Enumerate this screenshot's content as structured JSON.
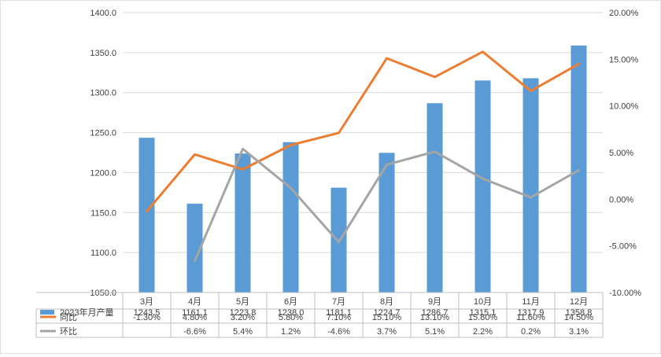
{
  "chart_data": {
    "type": "bar",
    "categories": [
      "3月",
      "4月",
      "5月",
      "6月",
      "7月",
      "8月",
      "9月",
      "10月",
      "11月",
      "12月"
    ],
    "series": [
      {
        "name": "2023年月产量",
        "kind": "bar",
        "axis": "left",
        "values": [
          1243.5,
          1161.1,
          1223.8,
          1238.0,
          1181.1,
          1224.7,
          1286.7,
          1315.1,
          1317.9,
          1358.8
        ],
        "labels": [
          "1243.5",
          "1161.1",
          "1223.8",
          "1238.0",
          "1181.1",
          "1224.7",
          "1286.7",
          "1315.1",
          "1317.9",
          "1358.8"
        ]
      },
      {
        "name": "同比",
        "kind": "line",
        "axis": "right",
        "values": [
          -1.3,
          4.8,
          3.2,
          5.8,
          7.1,
          15.1,
          13.1,
          15.8,
          11.6,
          14.5
        ],
        "labels": [
          "-1.30%",
          "4.80%",
          "3.20%",
          "5.80%",
          "7.10%",
          "15.10%",
          "13.10%",
          "15.80%",
          "11.60%",
          "14.50%"
        ]
      },
      {
        "name": "环比",
        "kind": "line",
        "axis": "right",
        "values": [
          null,
          -6.6,
          5.4,
          1.2,
          -4.6,
          3.7,
          5.1,
          2.2,
          0.2,
          3.1
        ],
        "labels": [
          "",
          "-6.6%",
          "5.4%",
          "1.2%",
          "-4.6%",
          "3.7%",
          "5.1%",
          "2.2%",
          "0.2%",
          "3.1%"
        ]
      }
    ],
    "ylim": [
      1050,
      1400
    ],
    "y_ticks": [
      "1400.0",
      "1350.0",
      "1300.0",
      "1250.0",
      "1200.0",
      "1150.0",
      "1100.0",
      "1050.0"
    ],
    "y2lim": [
      -10,
      20
    ],
    "y2_ticks": [
      "20.00%",
      "15.00%",
      "10.00%",
      "5.00%",
      "0.00%",
      "-5.00%",
      "-10.00%"
    ],
    "grid": true,
    "legend": "data-table-below",
    "colors": {
      "bar": "#5b9bd5",
      "yoy": "#ed7d31",
      "mom": "#a5a5a5",
      "grid": "#d9d9d9",
      "text": "#404040"
    }
  }
}
